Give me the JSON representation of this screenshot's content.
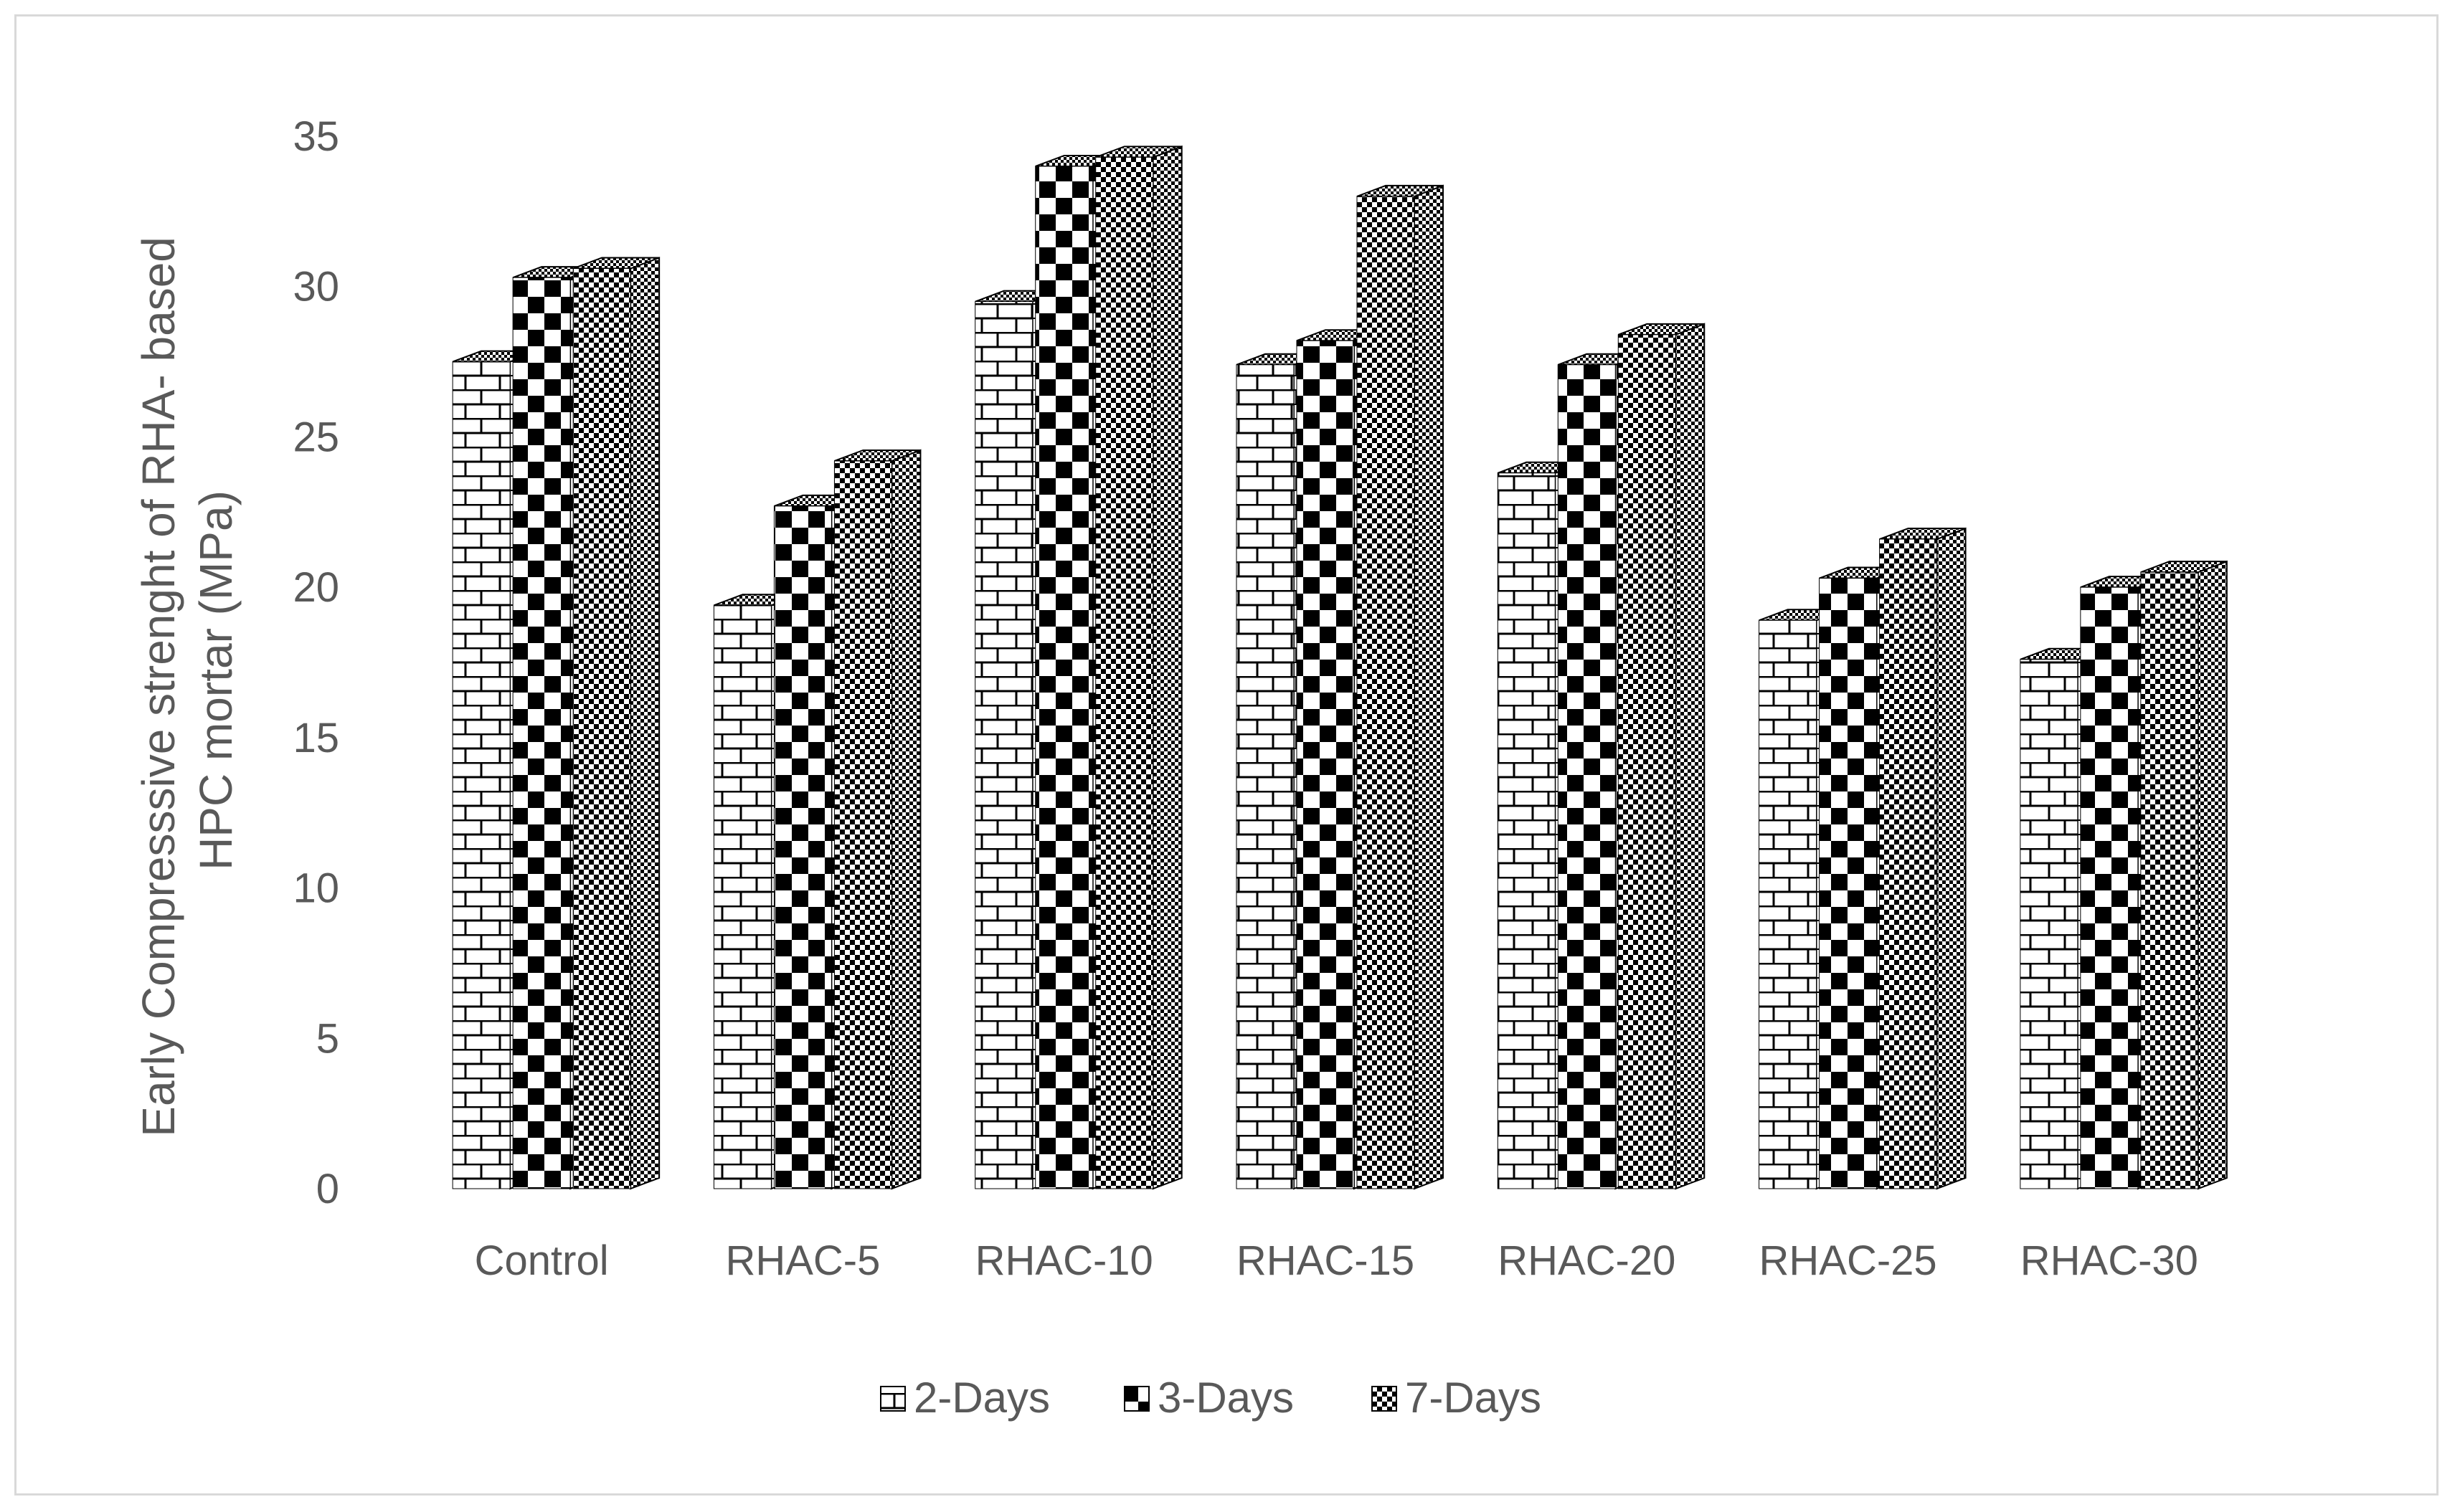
{
  "chart_data": {
    "type": "bar",
    "title": "",
    "xlabel": "",
    "ylabel": "Early Compresssive strenght of RHA- based HPC mortar (MPa)",
    "ylabel_lines": [
      "Early Compresssive strenght of RHA- based",
      "HPC mortar (MPa)"
    ],
    "ylim": [
      0,
      35
    ],
    "yticks": [
      0,
      5,
      10,
      15,
      20,
      25,
      30,
      35
    ],
    "grid": false,
    "legend_position": "bottom",
    "style": "3d-clustered-column-patterned",
    "categories": [
      "Control",
      "RHAC-5",
      "RHAC-10",
      "RHAC-15",
      "RHAC-20",
      "RHAC-25",
      "RHAC-30"
    ],
    "series": [
      {
        "name": "2-Days",
        "pattern": "brick",
        "values": [
          27.5,
          19.4,
          29.5,
          27.4,
          23.8,
          18.9,
          17.6
        ]
      },
      {
        "name": "3-Days",
        "pattern": "large-checker",
        "values": [
          30.3,
          22.7,
          34.0,
          28.2,
          27.4,
          20.3,
          20.0
        ]
      },
      {
        "name": "7-Days",
        "pattern": "small-checker",
        "values": [
          30.6,
          24.2,
          34.3,
          33.0,
          28.4,
          21.6,
          20.5
        ]
      }
    ],
    "colors": {
      "ink": "#000000",
      "paper": "#ffffff",
      "text": "#595959",
      "frame": "#d9d9d9"
    }
  }
}
